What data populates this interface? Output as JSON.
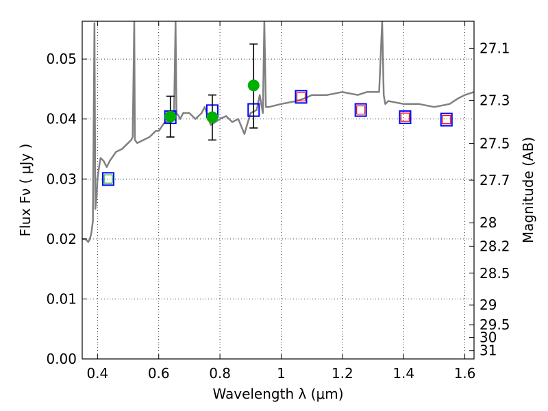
{
  "chart_data": {
    "type": "scatter",
    "xlabel": "Wavelength  λ (μm)",
    "ylabel": "Flux  Fν  ( μJy )",
    "ylabel_right": "Magnitude (AB)",
    "xlim": [
      0.35,
      1.63
    ],
    "ylim": [
      0.0,
      0.0563
    ],
    "grid": true,
    "x_ticks": [
      0.4,
      0.6,
      0.8,
      1.0,
      1.2,
      1.4,
      1.6
    ],
    "x_tick_labels": [
      "0.4",
      "0.6",
      "0.8",
      "1",
      "1.2",
      "1.4",
      "1.6"
    ],
    "y_ticks": [
      0.0,
      0.01,
      0.02,
      0.03,
      0.04,
      0.05
    ],
    "y_tick_labels": [
      "0.00",
      "0.01",
      "0.02",
      "0.03",
      "0.04",
      "0.05"
    ],
    "right_ticks": [
      {
        "label": "27.1",
        "flux": 0.0518
      },
      {
        "label": "27.3",
        "flux": 0.0431
      },
      {
        "label": "27.5",
        "flux": 0.0359
      },
      {
        "label": "27.7",
        "flux": 0.0298
      },
      {
        "label": "28",
        "flux": 0.0227
      },
      {
        "label": "28.2",
        "flux": 0.0188
      },
      {
        "label": "28.5",
        "flux": 0.0143
      },
      {
        "label": "29",
        "flux": 0.009
      },
      {
        "label": "29.5",
        "flux": 0.0057
      },
      {
        "label": "30",
        "flux": 0.0036
      },
      {
        "label": "31",
        "flux": 0.0014
      }
    ],
    "series": [
      {
        "kind": "spectrum",
        "color": "#808080",
        "x": [
          0.35,
          0.36,
          0.37,
          0.375,
          0.38,
          0.385,
          0.39,
          0.393,
          0.397,
          0.4,
          0.405,
          0.41,
          0.42,
          0.43,
          0.44,
          0.46,
          0.48,
          0.5,
          0.51,
          0.515,
          0.52,
          0.522,
          0.53,
          0.55,
          0.57,
          0.59,
          0.6,
          0.62,
          0.64,
          0.65,
          0.655,
          0.658,
          0.665,
          0.67,
          0.68,
          0.7,
          0.72,
          0.74,
          0.75,
          0.77,
          0.8,
          0.82,
          0.84,
          0.86,
          0.88,
          0.9,
          0.92,
          0.93,
          0.94,
          0.945,
          0.95,
          0.96,
          1.0,
          1.05,
          1.08,
          1.1,
          1.15,
          1.2,
          1.25,
          1.28,
          1.32,
          1.33,
          1.335,
          1.34,
          1.35,
          1.4,
          1.45,
          1.5,
          1.55,
          1.58,
          1.6,
          1.63
        ],
        "y": [
          0.02,
          0.02,
          0.0195,
          0.02,
          0.021,
          0.023,
          0.056,
          0.025,
          0.027,
          0.03,
          0.032,
          0.0335,
          0.033,
          0.032,
          0.033,
          0.0345,
          0.035,
          0.036,
          0.0365,
          0.037,
          0.0563,
          0.0365,
          0.036,
          0.0365,
          0.037,
          0.038,
          0.038,
          0.0395,
          0.0395,
          0.041,
          0.0563,
          0.041,
          0.0405,
          0.04,
          0.041,
          0.041,
          0.04,
          0.041,
          0.042,
          0.039,
          0.04,
          0.0405,
          0.0395,
          0.04,
          0.0375,
          0.041,
          0.0415,
          0.044,
          0.041,
          0.0563,
          0.042,
          0.042,
          0.0425,
          0.043,
          0.0435,
          0.044,
          0.044,
          0.0445,
          0.044,
          0.0445,
          0.0445,
          0.0563,
          0.044,
          0.0425,
          0.043,
          0.0425,
          0.0425,
          0.042,
          0.0425,
          0.0435,
          0.044,
          0.0445
        ]
      },
      {
        "kind": "model_points",
        "marker": "square",
        "edge_color": "#0000ff",
        "x": [
          0.435,
          0.638,
          0.775,
          0.91,
          1.065,
          1.26,
          1.405,
          1.54
        ],
        "y": [
          0.03,
          0.0403,
          0.0413,
          0.0415,
          0.0437,
          0.0415,
          0.0403,
          0.0399
        ]
      },
      {
        "kind": "inner_points",
        "marker": "square",
        "edge_color": "#ff0000",
        "x": [
          1.065,
          1.26,
          1.405,
          1.54
        ],
        "y": [
          0.0437,
          0.0415,
          0.0403,
          0.0399
        ]
      },
      {
        "kind": "inner_points",
        "marker": "square",
        "edge_color": "#00aa00",
        "x": [
          0.435
        ],
        "y": [
          0.03
        ]
      },
      {
        "kind": "observed",
        "marker": "circle",
        "color": "#00b000",
        "x": [
          0.638,
          0.775,
          0.91
        ],
        "y": [
          0.0404,
          0.0403,
          0.0456
        ],
        "err_low": [
          0.037,
          0.0365,
          0.0385
        ],
        "err_high": [
          0.0438,
          0.044,
          0.0525
        ]
      }
    ]
  }
}
